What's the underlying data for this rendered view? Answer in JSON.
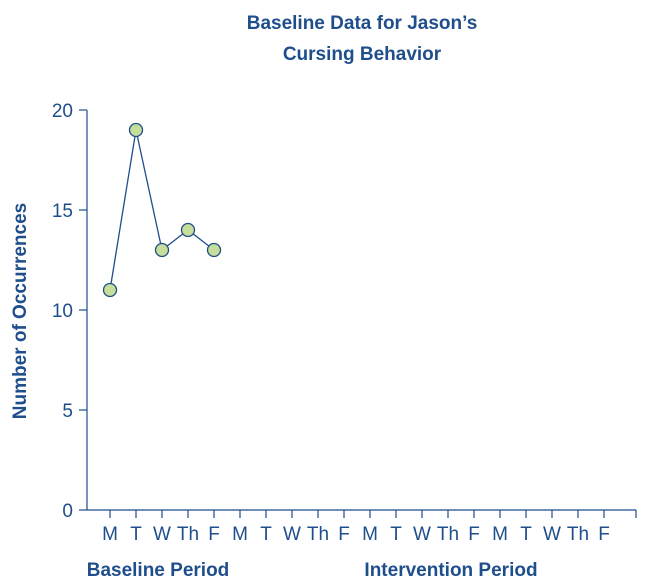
{
  "chart_data": {
    "type": "line",
    "title_lines": [
      "Baseline Data for Jason’s",
      "Cursing Behavior"
    ],
    "xlabel": "",
    "ylabel": "Number of Occurrences",
    "ylim": [
      0,
      20
    ],
    "y_ticks": [
      0,
      5,
      10,
      15,
      20
    ],
    "x_ticks": [
      "M",
      "T",
      "W",
      "Th",
      "F",
      "M",
      "T",
      "W",
      "Th",
      "F",
      "M",
      "T",
      "W",
      "Th",
      "F",
      "M",
      "T",
      "W",
      "Th",
      "F"
    ],
    "period_labels": [
      "Baseline Period",
      "Intervention Period"
    ],
    "series": [
      {
        "values": [
          11,
          19,
          13,
          14,
          13
        ]
      }
    ],
    "grid": false,
    "legend": "none",
    "colors": {
      "text": "#1f4e8c",
      "axis": "#1f4e8c",
      "line": "#1f4e8c",
      "marker_fill": "#c5df9a"
    }
  }
}
